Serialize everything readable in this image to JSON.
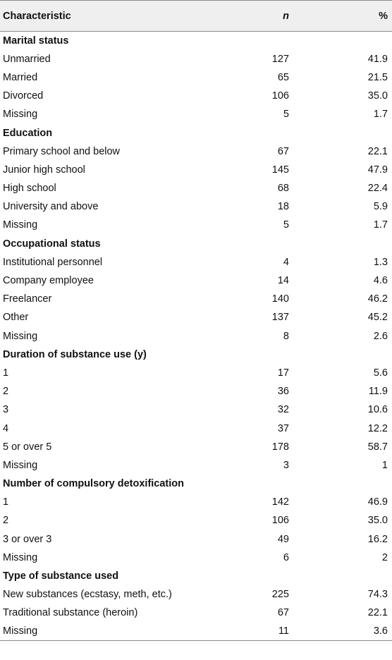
{
  "header": {
    "characteristic": "Characteristic",
    "n": "n",
    "percent": "%"
  },
  "rows": [
    {
      "type": "section",
      "label": "Marital status"
    },
    {
      "type": "item",
      "label": "Unmarried",
      "n": "127",
      "pct": "41.9"
    },
    {
      "type": "item",
      "label": "Married",
      "n": "65",
      "pct": "21.5"
    },
    {
      "type": "item",
      "label": "Divorced",
      "n": "106",
      "pct": "35.0"
    },
    {
      "type": "item",
      "label": "Missing",
      "n": "5",
      "pct": "1.7"
    },
    {
      "type": "section",
      "label": "Education"
    },
    {
      "type": "item",
      "label": "Primary school and below",
      "n": "67",
      "pct": "22.1"
    },
    {
      "type": "item",
      "label": "Junior high school",
      "n": "145",
      "pct": "47.9"
    },
    {
      "type": "item",
      "label": "High school",
      "n": "68",
      "pct": "22.4"
    },
    {
      "type": "item",
      "label": "University and above",
      "n": "18",
      "pct": "5.9"
    },
    {
      "type": "item",
      "label": "Missing",
      "n": "5",
      "pct": "1.7"
    },
    {
      "type": "section",
      "label": "Occupational status"
    },
    {
      "type": "item",
      "label": "Institutional personnel",
      "n": "4",
      "pct": "1.3"
    },
    {
      "type": "item",
      "label": "Company employee",
      "n": "14",
      "pct": "4.6"
    },
    {
      "type": "item",
      "label": "Freelancer",
      "n": "140",
      "pct": "46.2"
    },
    {
      "type": "item",
      "label": "Other",
      "n": "137",
      "pct": "45.2"
    },
    {
      "type": "item",
      "label": "Missing",
      "n": "8",
      "pct": "2.6"
    },
    {
      "type": "section",
      "label": "Duration of substance use (y)"
    },
    {
      "type": "item",
      "label": "1",
      "n": "17",
      "pct": "5.6"
    },
    {
      "type": "item",
      "label": "2",
      "n": "36",
      "pct": "11.9"
    },
    {
      "type": "item",
      "label": "3",
      "n": "32",
      "pct": "10.6"
    },
    {
      "type": "item",
      "label": "4",
      "n": "37",
      "pct": "12.2"
    },
    {
      "type": "item",
      "label": "5 or over 5",
      "n": "178",
      "pct": "58.7"
    },
    {
      "type": "item",
      "label": "Missing",
      "n": "3",
      "pct": "1"
    },
    {
      "type": "section",
      "label": "Number of compulsory detoxification"
    },
    {
      "type": "item",
      "label": "1",
      "n": "142",
      "pct": "46.9"
    },
    {
      "type": "item",
      "label": "2",
      "n": "106",
      "pct": "35.0"
    },
    {
      "type": "item",
      "label": "3 or over 3",
      "n": "49",
      "pct": "16.2"
    },
    {
      "type": "item",
      "label": "Missing",
      "n": "6",
      "pct": "2"
    },
    {
      "type": "section",
      "label": "Type of substance used"
    },
    {
      "type": "item",
      "label": "New substances (ecstasy, meth, etc.)",
      "n": "225",
      "pct": "74.3"
    },
    {
      "type": "item",
      "label": "Traditional substance (heroin)",
      "n": "67",
      "pct": "22.1"
    },
    {
      "type": "item",
      "label": "Missing",
      "n": "11",
      "pct": "3.6"
    }
  ]
}
